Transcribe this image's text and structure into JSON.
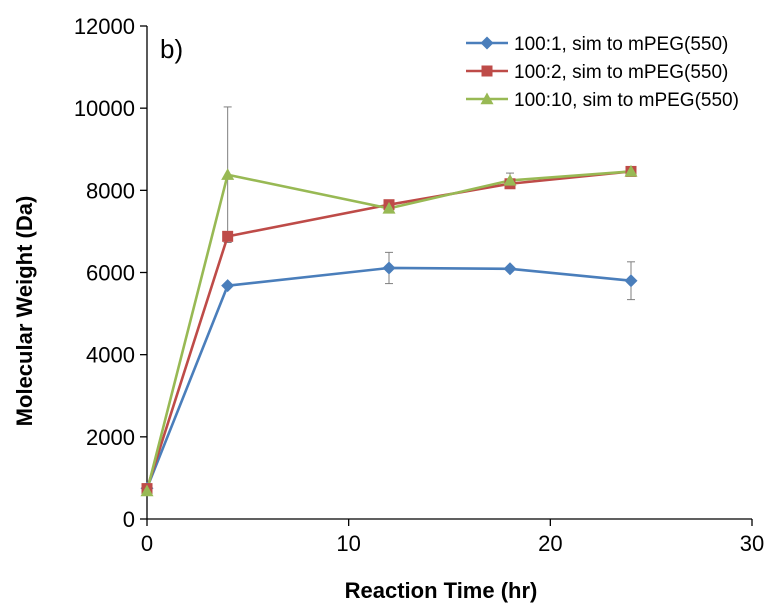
{
  "chart_data": {
    "type": "line",
    "panel_label": "b)",
    "xlabel": "Reaction Time (hr)",
    "ylabel": "Molecular Weight (Da)",
    "xlim": [
      0,
      30
    ],
    "ylim": [
      0,
      12000
    ],
    "xticks": [
      0,
      10,
      20,
      30
    ],
    "yticks": [
      0,
      2000,
      4000,
      6000,
      8000,
      10000,
      12000
    ],
    "grid": false,
    "legend_position": "top-right",
    "series": [
      {
        "name": "100:1, sim to mPEG(550)",
        "color": "#4A7EBB",
        "marker": "diamond",
        "x": [
          0,
          4,
          12,
          18,
          24
        ],
        "y": [
          750,
          5680,
          6110,
          6090,
          5800
        ],
        "err": [
          0,
          0,
          380,
          0,
          460
        ]
      },
      {
        "name": "100:2, sim to mPEG(550)",
        "color": "#BE4B48",
        "marker": "square",
        "x": [
          0,
          4,
          12,
          18,
          24
        ],
        "y": [
          740,
          6880,
          7650,
          8160,
          8460
        ],
        "err": [
          0,
          0,
          0,
          0,
          0
        ]
      },
      {
        "name": "100:10, sim to mPEG(550)",
        "color": "#98B954",
        "marker": "triangle",
        "x": [
          0,
          4,
          12,
          18,
          24
        ],
        "y": [
          680,
          8380,
          7560,
          8240,
          8460
        ],
        "err": [
          0,
          1650,
          0,
          180,
          0
        ]
      }
    ]
  }
}
